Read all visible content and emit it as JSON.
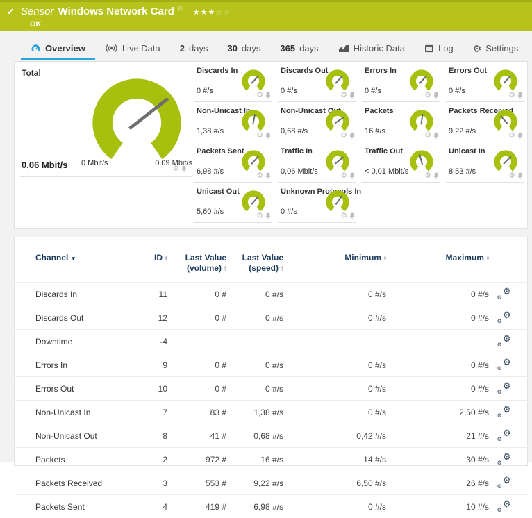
{
  "colors": {
    "header_green": "#b7c31b",
    "gauge_green": "#a6c00d",
    "accent_blue": "#2ea4dc",
    "table_header_blue": "#1b3a5c",
    "needle_gray": "#6e6e6e"
  },
  "header": {
    "status_icon": "check",
    "sensor_type_label": "Sensor",
    "sensor_name": "Windows Network Card",
    "flag_icon": "flag",
    "rating": {
      "filled": 3,
      "total": 5
    },
    "status_text": "OK"
  },
  "tabs": [
    {
      "id": "overview",
      "icon": "gauge-icon",
      "label": "Overview",
      "active": true
    },
    {
      "id": "live-data",
      "icon": "broadcast-icon",
      "label": "Live Data",
      "active": false
    },
    {
      "id": "2-days",
      "number": "2",
      "label": "days",
      "active": false
    },
    {
      "id": "30-days",
      "number": "30",
      "label": "days",
      "active": false
    },
    {
      "id": "365-days",
      "number": "365",
      "label": "days",
      "active": false
    },
    {
      "id": "historic-data",
      "icon": "chart-icon",
      "label": "Historic Data",
      "active": false
    },
    {
      "id": "log",
      "icon": "log-icon",
      "label": "Log",
      "active": false
    },
    {
      "id": "settings",
      "icon": "gear-icon",
      "label": "Settings",
      "active": false
    }
  ],
  "total_gauge": {
    "label": "Total",
    "value": "0,06 Mbit/s",
    "min_label": "0 Mbit/s",
    "max_label": "0.09 Mbit/s",
    "needle_deg": 52
  },
  "gauges": [
    {
      "label": "Discards In",
      "value": "0 #/s",
      "needle_deg": 42
    },
    {
      "label": "Discards Out",
      "value": "0 #/s",
      "needle_deg": 42
    },
    {
      "label": "Errors In",
      "value": "0 #/s",
      "needle_deg": 42
    },
    {
      "label": "Errors Out",
      "value": "0 #/s",
      "needle_deg": 42
    },
    {
      "label": "Non-Unicast In",
      "value": "1,38 #/s",
      "needle_deg": 12
    },
    {
      "label": "Non-Unicast Out",
      "value": "0,68 #/s",
      "needle_deg": 55
    },
    {
      "label": "Packets",
      "value": "16 #/s",
      "needle_deg": 8
    },
    {
      "label": "Packets Received",
      "value": "9,22 #/s",
      "needle_deg": -42
    },
    {
      "label": "Packets Sent",
      "value": "6,98 #/s",
      "needle_deg": 42
    },
    {
      "label": "Traffic In",
      "value": "0,06 Mbit/s",
      "needle_deg": 50
    },
    {
      "label": "Traffic Out",
      "value": "< 0,01 Mbit/s",
      "needle_deg": -15
    },
    {
      "label": "Unicast In",
      "value": "8,53 #/s",
      "needle_deg": 45
    },
    {
      "label": "Unicast Out",
      "value": "5,60 #/s",
      "needle_deg": 40
    },
    {
      "label": "Unknown Protocols In",
      "value": "0 #/s",
      "needle_deg": 35
    }
  ],
  "table": {
    "columns": [
      {
        "label": "Channel",
        "sort": "desc-active"
      },
      {
        "label": "ID",
        "sort": "both"
      },
      {
        "label": "Last Value (volume)",
        "sort": "both"
      },
      {
        "label": "Last Value (speed)",
        "sort": "both"
      },
      {
        "label": "Minimum",
        "sort": "both"
      },
      {
        "label": "Maximum",
        "sort": "both"
      }
    ],
    "rows": [
      {
        "channel": "Discards In",
        "id": "11",
        "volume": "0 #",
        "speed": "0 #/s",
        "min": "0 #/s",
        "max": "0 #/s"
      },
      {
        "channel": "Discards Out",
        "id": "12",
        "volume": "0 #",
        "speed": "0 #/s",
        "min": "0 #/s",
        "max": "0 #/s"
      },
      {
        "channel": "Downtime",
        "id": "-4",
        "volume": "",
        "speed": "",
        "min": "",
        "max": ""
      },
      {
        "channel": "Errors In",
        "id": "9",
        "volume": "0 #",
        "speed": "0 #/s",
        "min": "0 #/s",
        "max": "0 #/s"
      },
      {
        "channel": "Errors Out",
        "id": "10",
        "volume": "0 #",
        "speed": "0 #/s",
        "min": "0 #/s",
        "max": "0 #/s"
      },
      {
        "channel": "Non-Unicast In",
        "id": "7",
        "volume": "83 #",
        "speed": "1,38 #/s",
        "min": "0 #/s",
        "max": "2,50 #/s"
      },
      {
        "channel": "Non-Unicast Out",
        "id": "8",
        "volume": "41 #",
        "speed": "0,68 #/s",
        "min": "0,42 #/s",
        "max": "21 #/s"
      },
      {
        "channel": "Packets",
        "id": "2",
        "volume": "972 #",
        "speed": "16 #/s",
        "min": "14 #/s",
        "max": "30 #/s"
      },
      {
        "channel": "Packets Received",
        "id": "3",
        "volume": "553 #",
        "speed": "9,22 #/s",
        "min": "6,50 #/s",
        "max": "26 #/s"
      },
      {
        "channel": "Packets Sent",
        "id": "4",
        "volume": "419 #",
        "speed": "6,98 #/s",
        "min": "0 #/s",
        "max": "10 #/s"
      }
    ]
  }
}
